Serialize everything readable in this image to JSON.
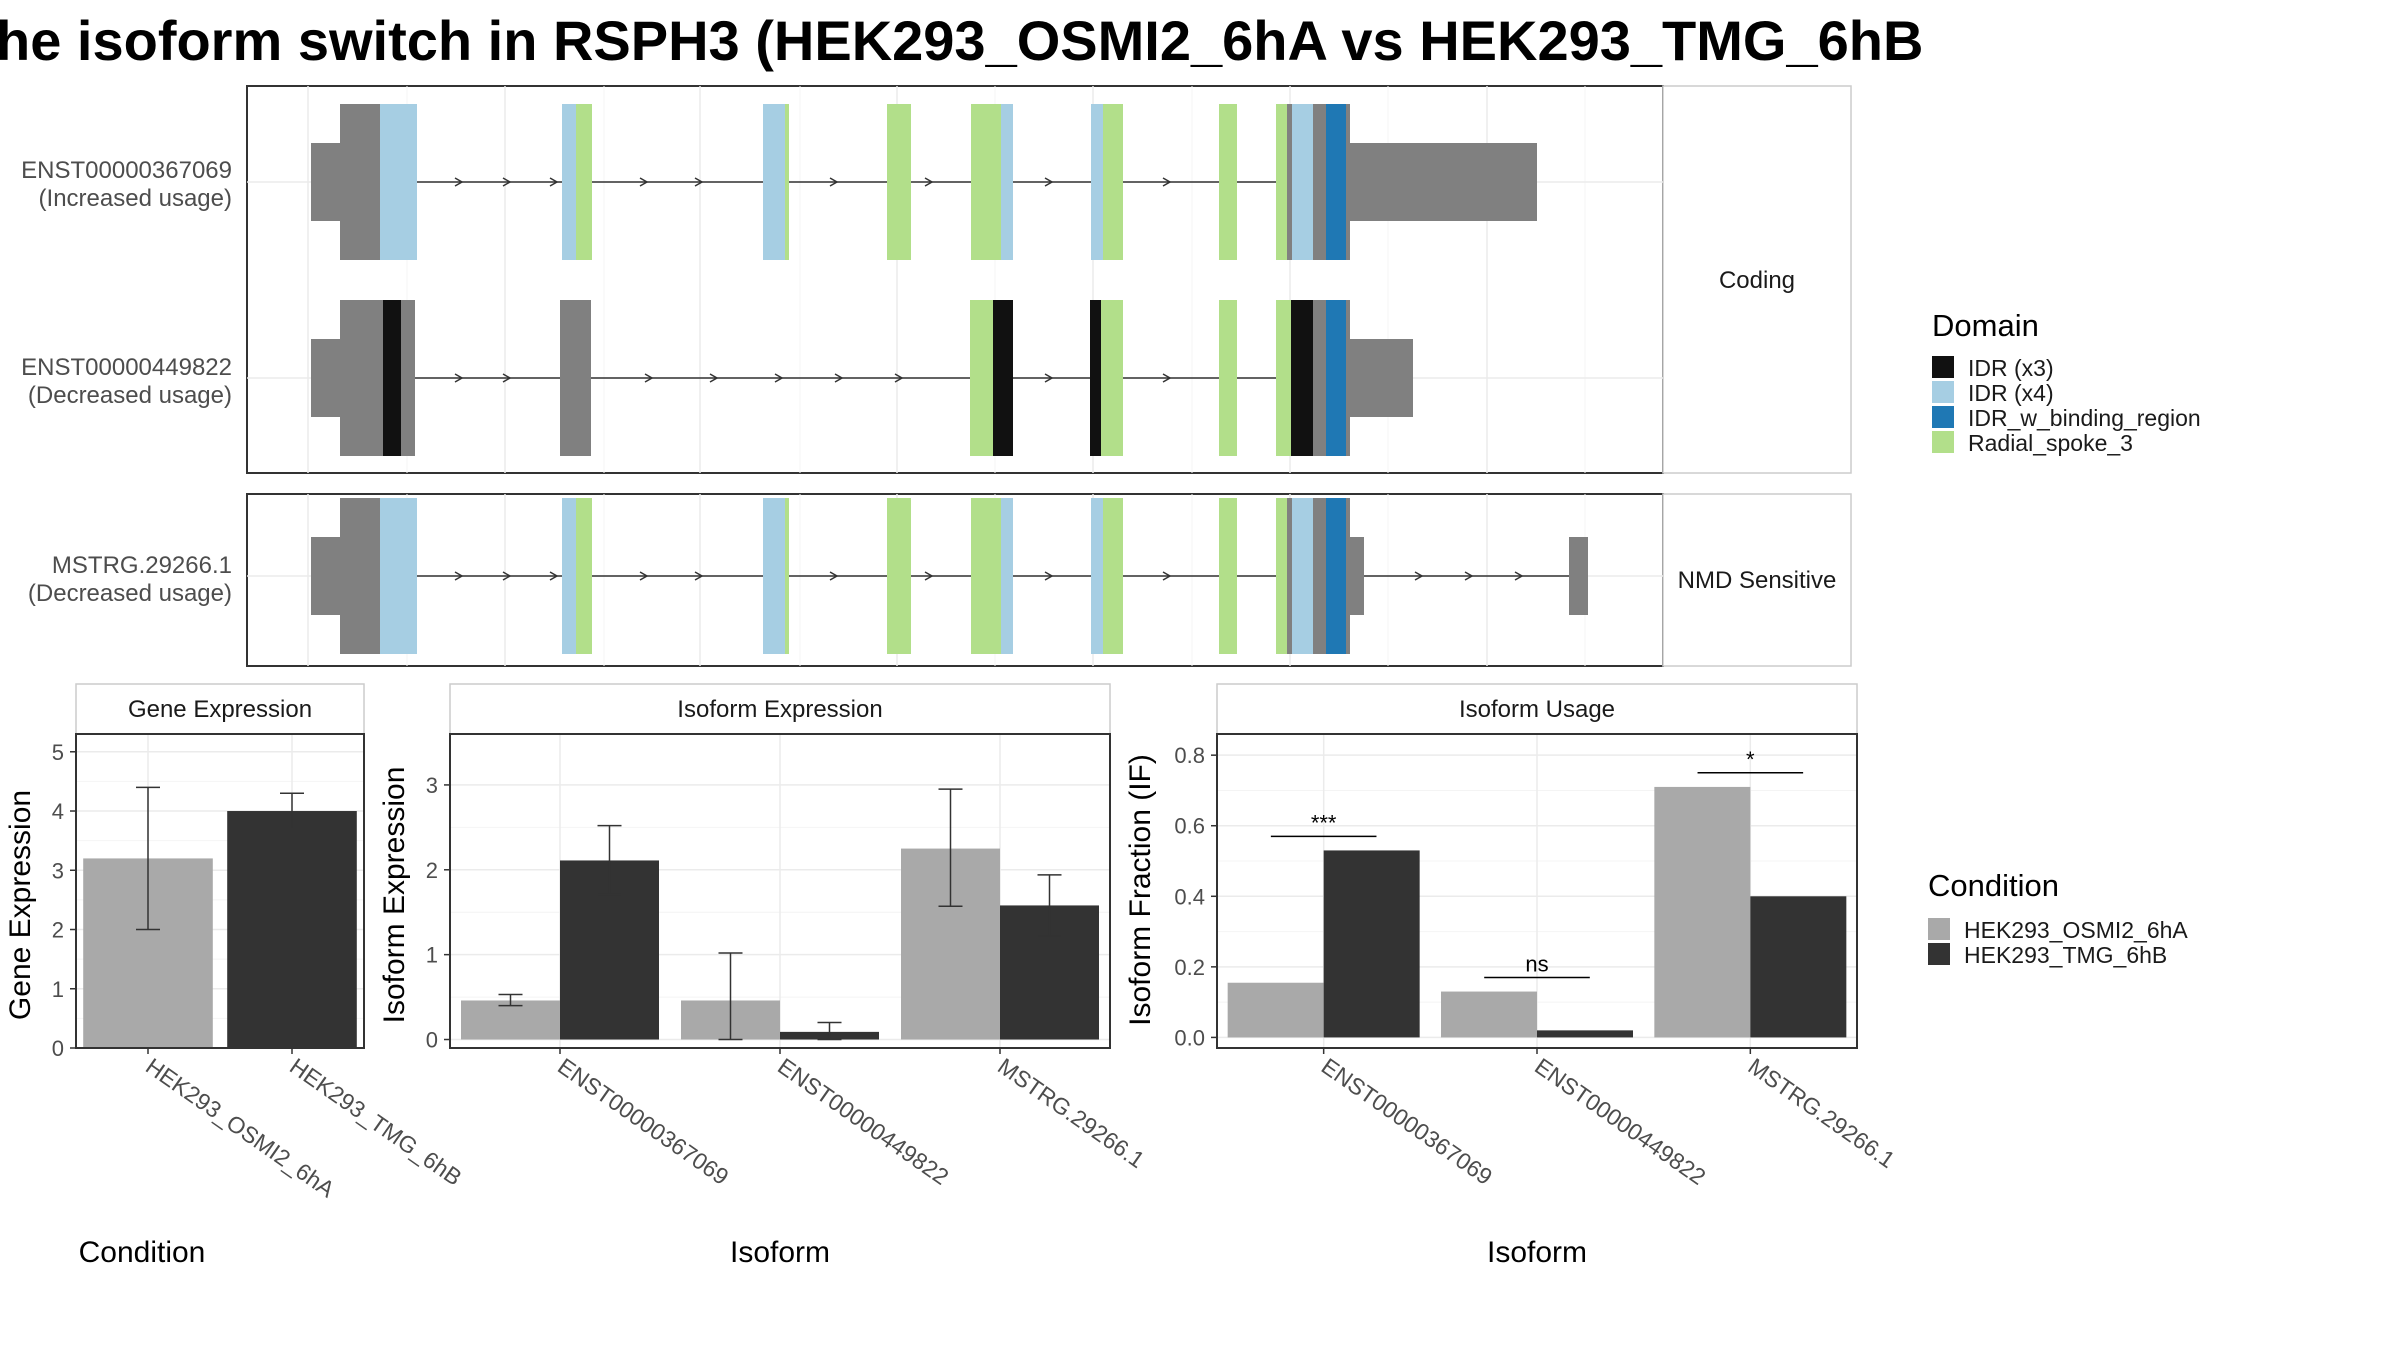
{
  "title": "he isoform switch in RSPH3 (HEK293_OSMI2_6hA vs HEK293_TMG_6hB",
  "colors": {
    "idr_x3": "#111111",
    "idr_x4": "#a6cee3",
    "idr_w_binding_region": "#1f78b4",
    "radial_spoke_3": "#b2df8a",
    "exon_grey": "#808080",
    "cond_a": "#a9a9a9",
    "cond_b": "#333333"
  },
  "structure": {
    "coding_label": "Coding",
    "nmd_label": "NMD Sensitive",
    "transcripts": [
      {
        "id": "ENST00000367069",
        "usage": "(Increased usage)",
        "group": "coding"
      },
      {
        "id": "ENST00000449822",
        "usage": "(Decreased usage)",
        "group": "coding"
      },
      {
        "id": "MSTRG.29266.1",
        "usage": "(Decreased usage)",
        "group": "nmd"
      }
    ]
  },
  "legend": {
    "domain_title": "Domain",
    "domain_items": [
      {
        "label": "IDR (x3)",
        "color": "#111111"
      },
      {
        "label": "IDR (x4)",
        "color": "#a6cee3"
      },
      {
        "label": "IDR_w_binding_region",
        "color": "#1f78b4"
      },
      {
        "label": "Radial_spoke_3",
        "color": "#b2df8a"
      }
    ],
    "condition_title": "Condition",
    "condition_items": [
      {
        "label": "HEK293_OSMI2_6hA",
        "color": "#a9a9a9"
      },
      {
        "label": "HEK293_TMG_6hB",
        "color": "#333333"
      }
    ]
  },
  "chart_data": [
    {
      "type": "bar",
      "panel": "Gene Expression",
      "categories": [
        "HEK293_OSMI2_6hA",
        "HEK293_TMG_6hB"
      ],
      "values": [
        3.2,
        4.0
      ],
      "errors": [
        [
          2.0,
          4.4
        ],
        [
          3.7,
          4.3
        ]
      ],
      "xlabel": "Condition",
      "ylabel": "Gene Expression",
      "ylim": [
        0,
        5.3
      ],
      "yticks": [
        0,
        1,
        2,
        3,
        4,
        5
      ],
      "grid": true
    },
    {
      "type": "bar",
      "panel": "Isoform Expression",
      "categories": [
        "ENST00000367069",
        "ENST00000449822",
        "MSTRG.29266.1"
      ],
      "series": [
        {
          "name": "HEK293_OSMI2_6hA",
          "values": [
            0.46,
            0.46,
            2.25
          ],
          "errors": [
            [
              0.4,
              0.53
            ],
            [
              0.0,
              1.02
            ],
            [
              1.57,
              2.95
            ]
          ]
        },
        {
          "name": "HEK293_TMG_6hB",
          "values": [
            2.11,
            0.09,
            1.58
          ],
          "errors": [
            [
              1.71,
              2.52
            ],
            [
              0.0,
              0.2
            ],
            [
              1.22,
              1.94
            ]
          ]
        }
      ],
      "xlabel": "Isoform",
      "ylabel": "Isoform Expression",
      "ylim": [
        -0.1,
        3.6
      ],
      "yticks": [
        0,
        1,
        2,
        3
      ],
      "grid": true
    },
    {
      "type": "bar",
      "panel": "Isoform Usage",
      "categories": [
        "ENST00000367069",
        "ENST00000449822",
        "MSTRG.29266.1"
      ],
      "series": [
        {
          "name": "HEK293_OSMI2_6hA",
          "values": [
            0.155,
            0.13,
            0.71
          ]
        },
        {
          "name": "HEK293_TMG_6hB",
          "values": [
            0.53,
            0.02,
            0.4
          ]
        }
      ],
      "significance": [
        "***",
        "ns",
        "*"
      ],
      "xlabel": "Isoform",
      "ylabel": "Isoform Fraction (IF)",
      "ylim": [
        -0.03,
        0.86
      ],
      "yticks": [
        0.0,
        0.2,
        0.4,
        0.6,
        0.8
      ],
      "ytick_labels": [
        "0.0",
        "0.2",
        "0.4",
        "0.6",
        "0.8"
      ],
      "grid": true
    }
  ]
}
